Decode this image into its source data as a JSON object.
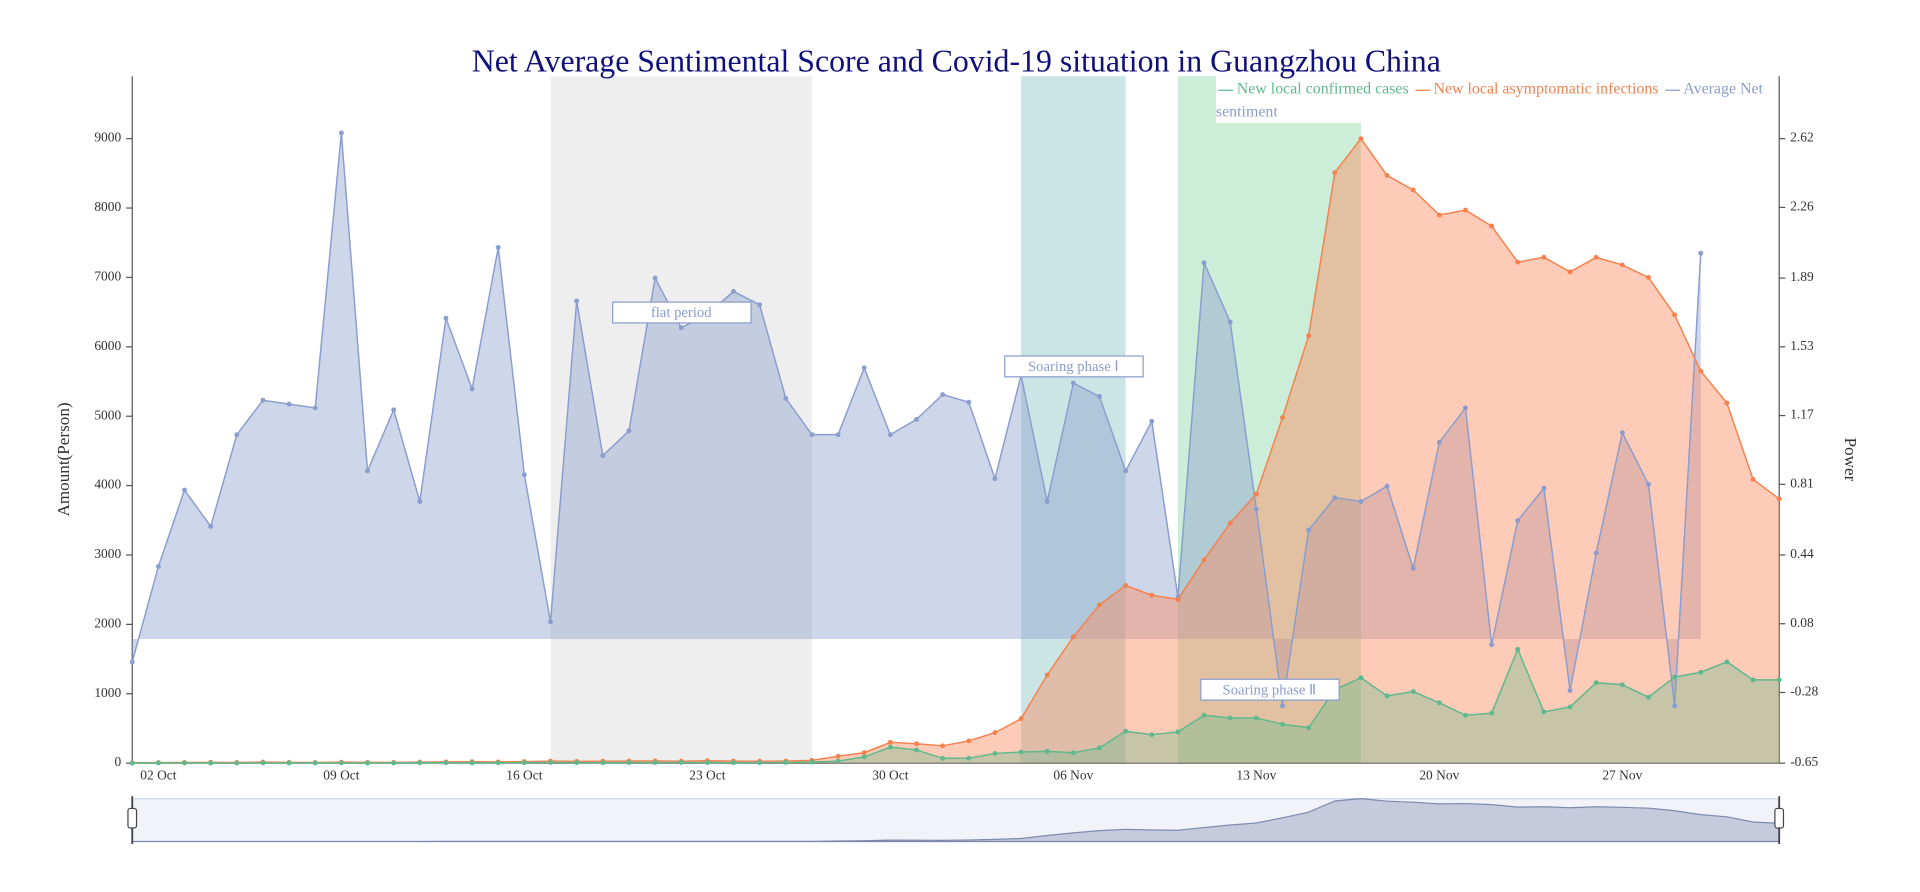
{
  "chart_data": {
    "type": "line",
    "title": "Net Average Sentimental Score and Covid-19 situation in Guangzhou China",
    "y_label": "Amount(Person)",
    "y2_label": "Power",
    "categories": [
      null,
      "02 Oct",
      null,
      null,
      null,
      null,
      null,
      null,
      "09 Oct",
      null,
      null,
      null,
      null,
      null,
      null,
      "16 Oct",
      null,
      null,
      null,
      null,
      null,
      null,
      "23 Oct",
      null,
      null,
      null,
      null,
      null,
      null,
      "30 Oct",
      null,
      null,
      null,
      null,
      null,
      null,
      "06 Nov",
      null,
      null,
      null,
      null,
      null,
      null,
      "13 Nov",
      null,
      null,
      null,
      null,
      null,
      null,
      "20 Nov",
      null,
      null,
      null,
      null,
      null,
      null,
      "27 Nov",
      null,
      null,
      null,
      null,
      null,
      null
    ],
    "ylim": [
      0,
      9000
    ],
    "yticks": [
      0,
      1000,
      2000,
      3000,
      4000,
      5000,
      6000,
      7000,
      8000,
      9000
    ],
    "y2lim": [
      -0.65,
      2.62
    ],
    "y2ticks": [
      -0.65,
      -0.28,
      0.08,
      0.44,
      0.81,
      1.17,
      1.53,
      1.89,
      2.26,
      2.62
    ],
    "grid": false,
    "series": [
      {
        "name": "New local confirmed cases",
        "color": "#5fb98c",
        "values": [
          0,
          2,
          3,
          2,
          1,
          3,
          2,
          4,
          3,
          2,
          3,
          5,
          6,
          4,
          5,
          7,
          10,
          8,
          6,
          9,
          8,
          10,
          9,
          7,
          8,
          10,
          15,
          30,
          90,
          230,
          190,
          70,
          70,
          140,
          160,
          170,
          150,
          220,
          460,
          410,
          450,
          690,
          650,
          650,
          560,
          510,
          1060,
          1230,
          970,
          1030,
          870,
          690,
          720,
          1640,
          740,
          810,
          1160,
          1130,
          950,
          1240,
          1310,
          1460,
          1200,
          1200
        ]
      },
      {
        "name": "New local asymptomatic infections",
        "color": "#f5814e",
        "values": [
          5,
          8,
          10,
          12,
          10,
          15,
          12,
          10,
          14,
          12,
          10,
          15,
          18,
          20,
          18,
          22,
          30,
          25,
          28,
          30,
          32,
          28,
          35,
          30,
          28,
          30,
          40,
          100,
          150,
          300,
          280,
          250,
          320,
          440,
          640,
          1270,
          1820,
          2280,
          2560,
          2420,
          2360,
          2930,
          3460,
          3880,
          4980,
          6160,
          8510,
          9000,
          8470,
          8260,
          7900,
          7970,
          7740,
          7220,
          7290,
          7080,
          7290,
          7180,
          7000,
          6460,
          5650,
          5190,
          4090,
          3810
        ]
      },
      {
        "name": "Average Net sentiment",
        "color": "#8a9dce",
        "axis": "y2",
        "values": [
          -0.12,
          0.38,
          0.78,
          0.59,
          1.07,
          1.25,
          1.23,
          1.21,
          2.65,
          0.88,
          1.2,
          0.72,
          1.68,
          1.31,
          2.05,
          0.86,
          0.09,
          1.77,
          0.96,
          1.09,
          1.89,
          1.63,
          1.7,
          1.82,
          1.75,
          1.26,
          1.07,
          1.07,
          1.42,
          1.07,
          1.15,
          1.28,
          1.24,
          0.84,
          1.38,
          0.72,
          1.34,
          1.27,
          0.88,
          1.14,
          0.22,
          1.97,
          1.66,
          0.68,
          -0.35,
          0.57,
          0.74,
          0.72,
          0.8,
          0.37,
          1.03,
          1.21,
          -0.03,
          0.62,
          0.79,
          -0.27,
          0.45,
          1.08,
          0.81,
          -0.35,
          2.02,
          null,
          null,
          null
        ]
      }
    ],
    "mark_areas": [
      {
        "label": "flat period",
        "x_range": [
          16,
          26
        ],
        "color": "#d9d9d9"
      },
      {
        "label": "Soaring phase Ⅰ",
        "x_range": [
          34,
          38
        ],
        "color": "#8cc5c5"
      },
      {
        "label": "Soaring phase Ⅱ",
        "x_range": [
          40,
          47
        ],
        "color": "#8fd6a8"
      }
    ],
    "data_zoom": true
  }
}
